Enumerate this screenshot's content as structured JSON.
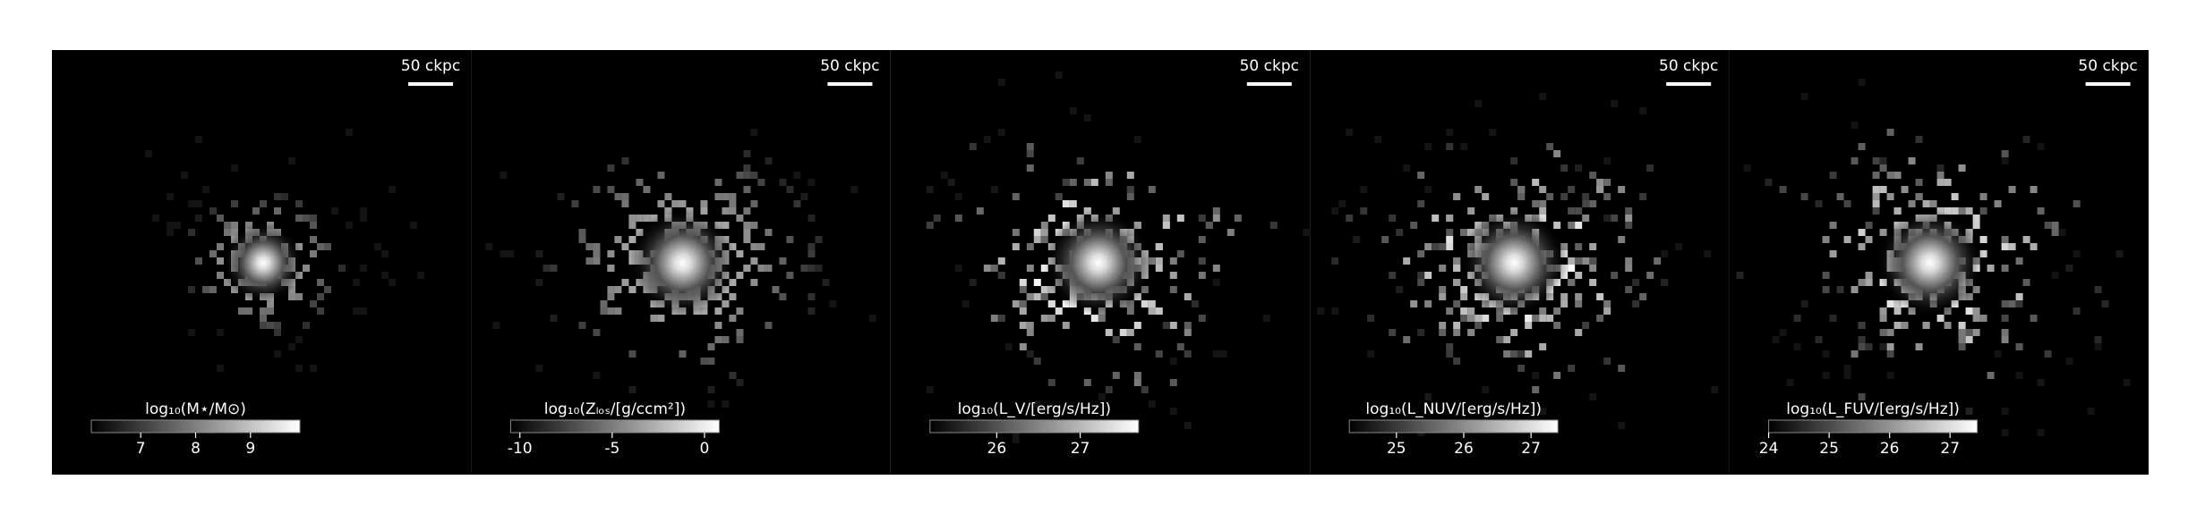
{
  "chart_data": [
    {
      "type": "image",
      "scale_bar": "50 ckpc",
      "colorbar_label": "log₁₀(M⋆/M⊙)",
      "clim": [
        6.1,
        9.9
      ],
      "ticks": [
        7,
        8,
        9
      ]
    },
    {
      "type": "image",
      "scale_bar": "50 ckpc",
      "colorbar_label": "log₁₀(Zₗₒₛ/[g/ccm²])",
      "clim": [
        -10.5,
        0.8
      ],
      "ticks": [
        -10,
        -5,
        0
      ]
    },
    {
      "type": "image",
      "scale_bar": "50 ckpc",
      "colorbar_label": "log₁₀(L_V/[erg/s/Hz])",
      "clim": [
        25.2,
        27.7
      ],
      "ticks": [
        26,
        27
      ]
    },
    {
      "type": "image",
      "scale_bar": "50 ckpc",
      "colorbar_label": "log₁₀(L_NUV/[erg/s/Hz])",
      "clim": [
        24.3,
        27.4
      ],
      "ticks": [
        25,
        26,
        27
      ]
    },
    {
      "type": "image",
      "scale_bar": "50 ckpc",
      "colorbar_label": "log₁₀(L_FUV/[erg/s/Hz])",
      "clim": [
        24.0,
        27.45
      ],
      "ticks": [
        24,
        25,
        26,
        27
      ]
    }
  ]
}
